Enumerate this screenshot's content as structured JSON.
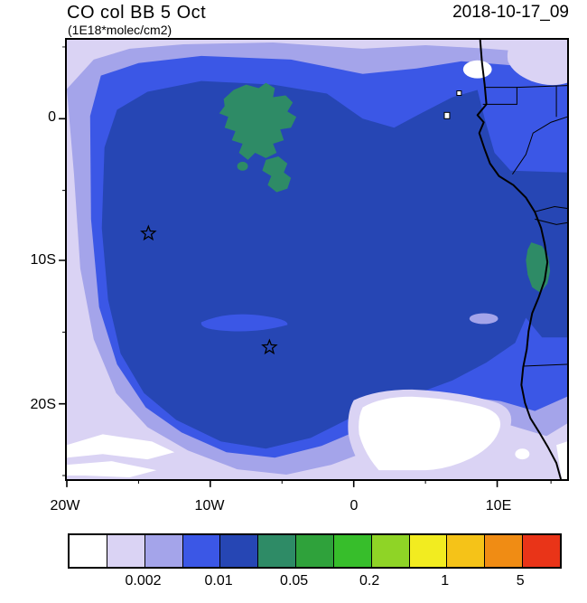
{
  "header": {
    "title": "CO col BB 5 Oct",
    "units": "(1E18*molec/cm2)",
    "datetime": "2018-10-17_09"
  },
  "axes": {
    "x": [
      {
        "label": "20W"
      },
      {
        "label": "10W"
      },
      {
        "label": "0"
      },
      {
        "label": "10E"
      }
    ],
    "y": [
      {
        "label": "0"
      },
      {
        "label": "10S"
      },
      {
        "label": "20S"
      }
    ]
  },
  "colorbar": {
    "palette": [
      "#FFFFFF",
      "#DAD3F4",
      "#A4A4EA",
      "#3B57E6",
      "#2646B4",
      "#2E8B66",
      "#2FA23B",
      "#37BE2B",
      "#8FD426",
      "#F2EC20",
      "#F5C318",
      "#F08C14",
      "#E93418"
    ],
    "labels": [
      "0.002",
      "0.01",
      "0.05",
      "0.2",
      "1",
      "5"
    ],
    "label_boundaries": [
      2,
      4,
      6,
      8,
      10,
      12
    ]
  },
  "chart_data": {
    "type": "heatmap",
    "title": "CO col BB 5 Oct",
    "units": "1E18*molec/cm2",
    "timestamp": "2018-10-17_09",
    "projection": "lat-lon filled contour map, eastern tropical Atlantic / SW Africa",
    "extent": {
      "lon_min": -20,
      "lon_max": 14.9,
      "lat_min": -25.1,
      "lat_max": 5.5
    },
    "x_ticks": [
      "20W",
      "10W",
      "0",
      "10E"
    ],
    "y_ticks": [
      "0",
      "10S",
      "20S"
    ],
    "contour_levels": [
      0.002,
      0.005,
      0.01,
      0.02,
      0.05,
      0.1,
      0.2,
      0.5,
      1,
      2,
      5
    ],
    "labeled_levels": [
      0.002,
      0.01,
      0.05,
      0.2,
      1,
      5
    ],
    "markers": [
      {
        "symbol": "open-star",
        "lon": -14.3,
        "lat": -8.0
      },
      {
        "symbol": "open-star",
        "lon": -5.9,
        "lat": -15.9
      }
    ],
    "field_summary": "Broad plume of ~0.02-0.05 over most of the basin; patches above 0.05 (green) near 3S-8S mid-basin and along the Angola coast 9-12S; values fall below 0.002 (white) toward the south-central and southwest edges"
  }
}
